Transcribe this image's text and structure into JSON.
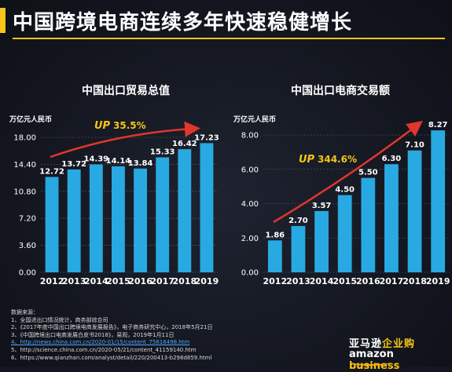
{
  "page": {
    "title": "中国跨境电商连续多年快速稳健增长",
    "accent_color": "#f5c518"
  },
  "chart_data": [
    {
      "type": "bar",
      "title": "中国出口贸易总值",
      "ylabel": "万亿元人民币",
      "categories": [
        "2012",
        "2013",
        "2014",
        "2015",
        "2016",
        "2017",
        "2018",
        "2019"
      ],
      "values": [
        12.72,
        13.72,
        14.39,
        14.14,
        13.84,
        15.33,
        16.42,
        17.23
      ],
      "value_labels": [
        "12.72",
        "13.72",
        "14.39",
        "14.14",
        "13.84",
        "15.33",
        "16.42",
        "17.23"
      ],
      "ylim": [
        0,
        18
      ],
      "yticks": [
        "0.00",
        "3.60",
        "7.20",
        "10.80",
        "14.40",
        "18.00"
      ],
      "annotation": {
        "prefix": "UP",
        "text": "35.5%"
      },
      "bar_color": "#29a9e1",
      "arrow_color": "#e0362c",
      "grid": true
    },
    {
      "type": "bar",
      "title": "中国出口电商交易额",
      "ylabel": "万亿元人民币",
      "categories": [
        "2012",
        "2013",
        "2014",
        "2015",
        "2016",
        "2017",
        "2018",
        "2019"
      ],
      "values": [
        1.86,
        2.7,
        3.57,
        4.5,
        5.5,
        6.3,
        7.1,
        8.27
      ],
      "value_labels": [
        "1.86",
        "2.70",
        "3.57",
        "4.50",
        "5.50",
        "6.30",
        "7.10",
        "8.27"
      ],
      "ylim": [
        0,
        8
      ],
      "yticks": [
        "0.00",
        "2.00",
        "4.00",
        "6.00",
        "8.00"
      ],
      "annotation": {
        "prefix": "UP",
        "text": "344.6%"
      },
      "bar_color": "#29a9e1",
      "arrow_color": "#e0362c",
      "grid": true
    }
  ],
  "sources": {
    "header": "数据来源：",
    "items": [
      "1、全国进出口情况统计，商务部综合司",
      "2、《2017年度中国出口跨境电商发展报告》，电子商务研究中心，2018年5月21日",
      "3、《中国跨境出口电商发展白皮书2018》，易观，2019年1月11日",
      "4、http://news.china.com.cn/2020-01/15/content_75616498.htm",
      "5、http://science.china.com.cn/2020-05/21/content_41159140.htm",
      "6、https://www.qianzhan.com/analyst/detail/220/200413-b298d859.html"
    ]
  },
  "brand": {
    "cn_main": "亚马逊",
    "cn_accent": "企业购",
    "en_main": "amazon",
    "en_accent": "business"
  }
}
